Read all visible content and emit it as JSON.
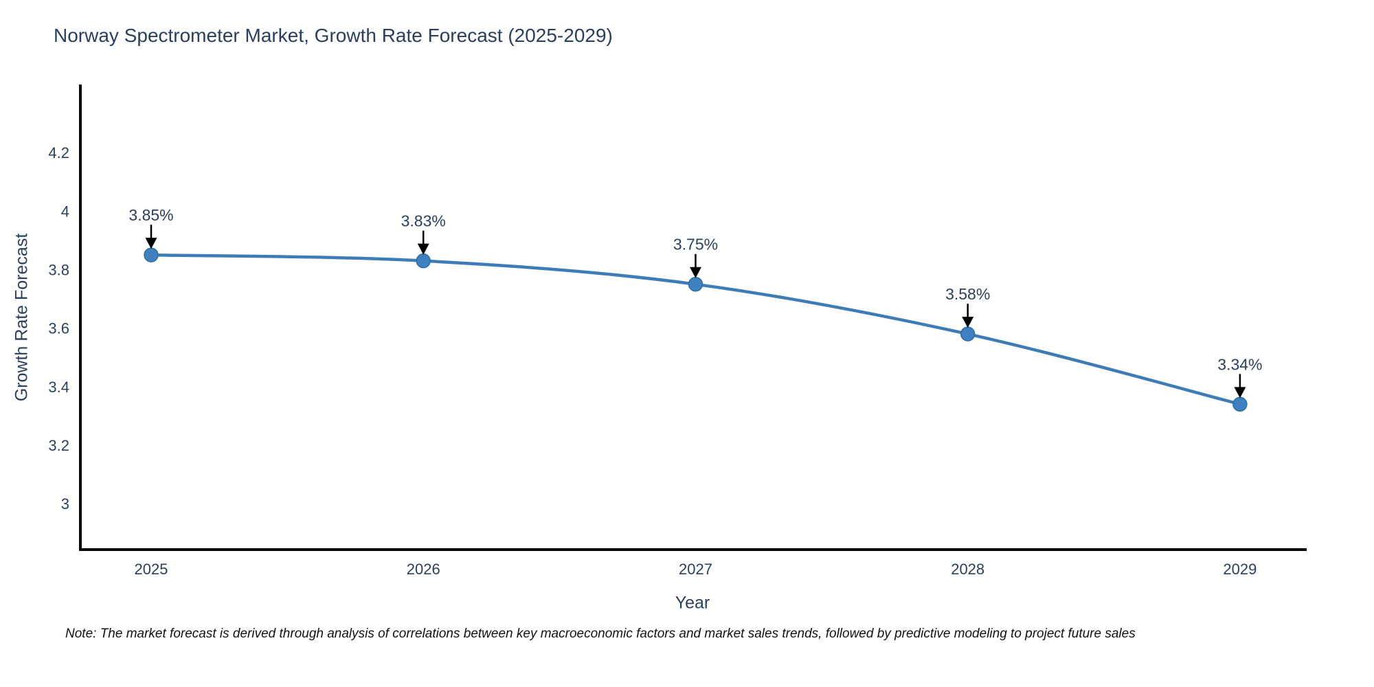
{
  "title": "Norway Spectrometer Market, Growth Rate Forecast (2025-2029)",
  "note": "Note: The market forecast is derived through analysis of correlations between key macroeconomic factors and market sales trends, followed by predictive modeling to project future sales",
  "chart_data": {
    "type": "line",
    "title": "Norway Spectrometer Market, Growth Rate Forecast (2025-2029)",
    "xlabel": "Year",
    "ylabel": "Growth Rate Forecast",
    "x": [
      2025,
      2026,
      2027,
      2028,
      2029
    ],
    "x_tick_labels": [
      "2025",
      "2026",
      "2027",
      "2028",
      "2029"
    ],
    "values": [
      3.85,
      3.83,
      3.75,
      3.58,
      3.34
    ],
    "point_labels": [
      "3.85%",
      "3.83%",
      "3.75%",
      "3.58%",
      "3.34%"
    ],
    "yticks": [
      3,
      3.2,
      3.4,
      3.6,
      3.8,
      4,
      4.2
    ],
    "ytick_labels": [
      "3",
      "3.2",
      "3.4",
      "3.6",
      "3.8",
      "4",
      "4.2"
    ],
    "ylim": [
      2.843,
      4.428
    ],
    "xlim": [
      2024.74,
      2029.24
    ],
    "grid": false,
    "legend": "none",
    "line_color": "#3e7cb8",
    "marker_color": "#3f81bf",
    "marker_edge_color": "#2e6da4",
    "axis_color": "#000000",
    "text_color": "#2a3f5f",
    "annotation_color": "#2a3f5f",
    "arrow_color": "#000000",
    "background_color": "#ffffff"
  }
}
